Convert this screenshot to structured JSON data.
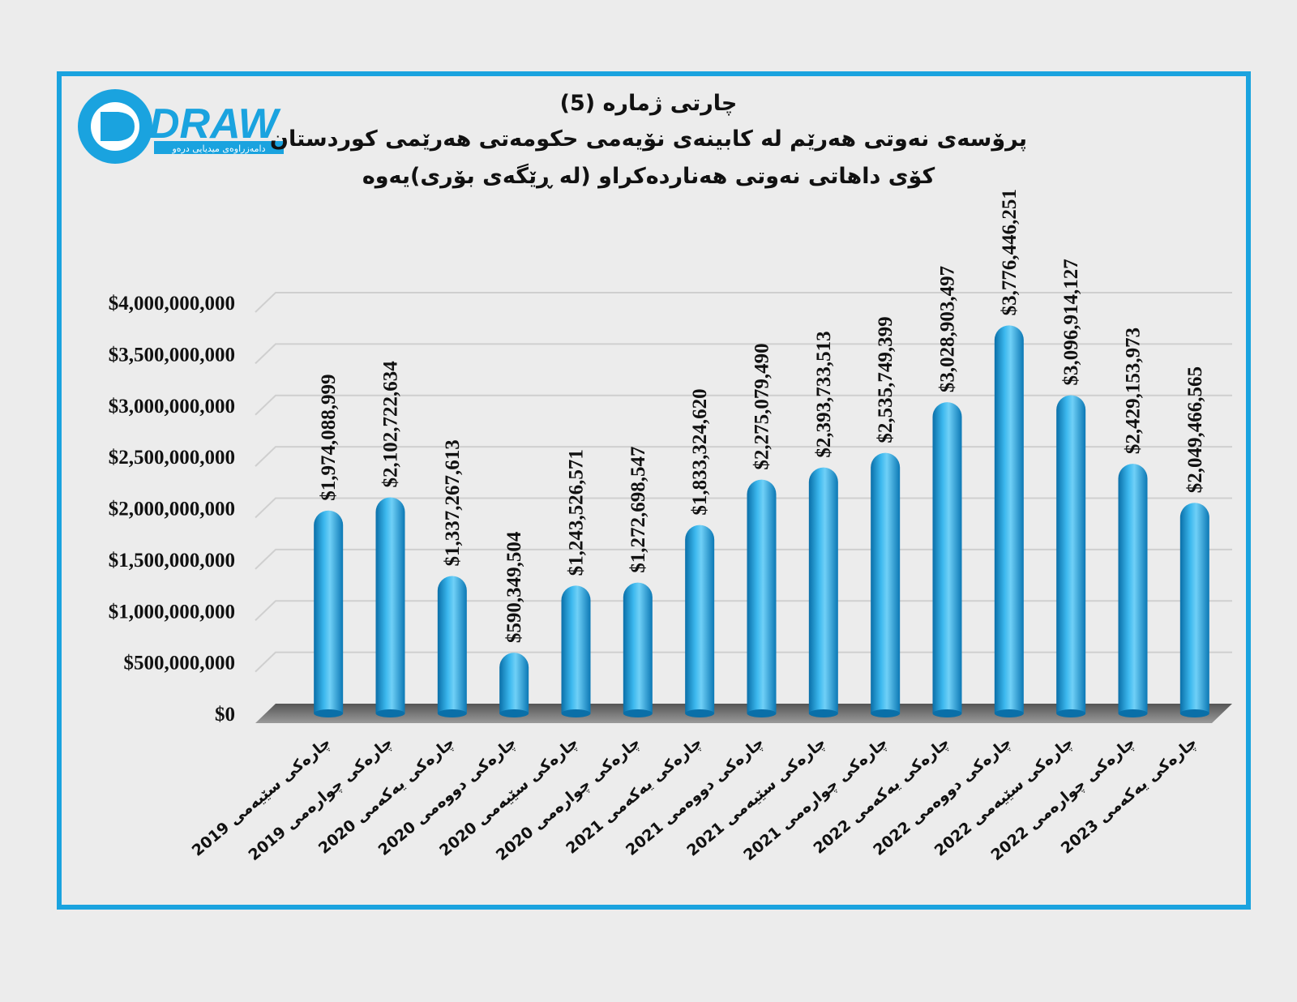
{
  "logo": {
    "word": "DRAW",
    "tagline": "دامەزراوەی میدیایی درەو"
  },
  "colors": {
    "frame": "#1aa3df",
    "bar": "#1a9ad8",
    "bar_dark": "#0a6fa8",
    "bar_light": "#6fd0f7",
    "background": "#ececec"
  },
  "chart_data": {
    "type": "bar",
    "title": "چارتی ژمارە (5)",
    "subtitle": "پرۆسەی نەوتی هەرێم لە کابینەی نۆیەمی حکومەتی هەرێمی کوردستان",
    "subtitle2": "کۆی داهاتی نەوتی هەناردەکراو (لە ڕێگەی بۆری)یەوە",
    "categories": [
      "چارەکی سێیەمی 2019",
      "چارەکی چوارەمی 2019",
      "چارەکی یەکەمی 2020",
      "چارەکی دووەمی 2020",
      "چارەکی سێیەمی 2020",
      "چارەکی چوارەمی 2020",
      "چارەکی یەکەمی 2021",
      "چارەکی دووەمی 2021",
      "چارەکی سێیەمی 2021",
      "چارەکی چوارەمی 2021",
      "چارەکی یەکەمی 2022",
      "چارەکی دووەمی 2022",
      "چارەکی سێیەمی 2022",
      "چارەکی چوارەمی 2022",
      "چارەکی یەکەمی 2023"
    ],
    "values": [
      1974088999,
      2102722634,
      1337267613,
      590349504,
      1243526571,
      1272698547,
      1833324620,
      2275079490,
      2393733513,
      2535749399,
      3028903497,
      3776446251,
      3096914127,
      2429153973,
      2049466565
    ],
    "value_labels": [
      "$1,974,088,999",
      "$2,102,722,634",
      "$1,337,267,613",
      "$590,349,504",
      "$1,243,526,571",
      "$1,272,698,547",
      "$1,833,324,620",
      "$2,275,079,490",
      "$2,393,733,513",
      "$2,535,749,399",
      "$3,028,903,497",
      "$3,776,446,251",
      "$3,096,914,127",
      "$2,429,153,973",
      "$2,049,466,565"
    ],
    "y_ticks": [
      0,
      500000000,
      1000000000,
      1500000000,
      2000000000,
      2500000000,
      3000000000,
      3500000000,
      4000000000
    ],
    "y_tick_labels": [
      "$0",
      "$500,000,000",
      "$1,000,000,000",
      "$1,500,000,000",
      "$2,000,000,000",
      "$2,500,000,000",
      "$3,000,000,000",
      "$3,500,000,000",
      "$4,000,000,000"
    ],
    "ylim": [
      0,
      4000000000
    ],
    "xlabel": "",
    "ylabel": "",
    "grid": true,
    "legend": "none"
  }
}
